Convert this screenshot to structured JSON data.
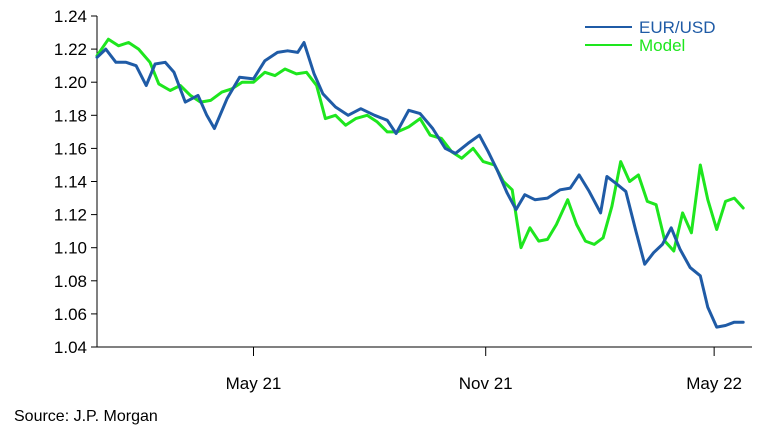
{
  "source": "Source: J.P. Morgan",
  "chart_data": {
    "type": "line",
    "title": "",
    "xlabel": "",
    "ylabel": "",
    "ylim": [
      1.04,
      1.24
    ],
    "yticks": [
      "1.04",
      "1.06",
      "1.08",
      "1.10",
      "1.12",
      "1.14",
      "1.16",
      "1.18",
      "1.20",
      "1.22",
      "1.24"
    ],
    "xlim": [
      "2020-12-28",
      "2022-05-31"
    ],
    "xticks": [
      {
        "date": "2021-05-01",
        "label": "May 21"
      },
      {
        "date": "2021-11-01",
        "label": "Nov 21"
      },
      {
        "date": "2022-05-01",
        "label": "May 22"
      }
    ],
    "grid": false,
    "legend_position": "top-right",
    "series": [
      {
        "name": "EUR/USD",
        "color": "#1f5ba6",
        "points": [
          [
            "2020-12-28",
            1.215
          ],
          [
            "2021-01-04",
            1.22
          ],
          [
            "2021-01-12",
            1.212
          ],
          [
            "2021-01-20",
            1.212
          ],
          [
            "2021-01-28",
            1.21
          ],
          [
            "2021-02-05",
            1.198
          ],
          [
            "2021-02-12",
            1.211
          ],
          [
            "2021-02-20",
            1.212
          ],
          [
            "2021-02-27",
            1.206
          ],
          [
            "2021-03-08",
            1.188
          ],
          [
            "2021-03-18",
            1.192
          ],
          [
            "2021-03-25",
            1.18
          ],
          [
            "2021-03-31",
            1.172
          ],
          [
            "2021-04-10",
            1.19
          ],
          [
            "2021-04-20",
            1.203
          ],
          [
            "2021-05-01",
            1.202
          ],
          [
            "2021-05-10",
            1.213
          ],
          [
            "2021-05-20",
            1.218
          ],
          [
            "2021-05-28",
            1.219
          ],
          [
            "2021-06-05",
            1.218
          ],
          [
            "2021-06-10",
            1.224
          ],
          [
            "2021-06-18",
            1.205
          ],
          [
            "2021-06-25",
            1.193
          ],
          [
            "2021-07-05",
            1.185
          ],
          [
            "2021-07-15",
            1.18
          ],
          [
            "2021-07-25",
            1.184
          ],
          [
            "2021-08-05",
            1.18
          ],
          [
            "2021-08-15",
            1.177
          ],
          [
            "2021-08-22",
            1.169
          ],
          [
            "2021-09-01",
            1.183
          ],
          [
            "2021-09-10",
            1.181
          ],
          [
            "2021-09-20",
            1.172
          ],
          [
            "2021-09-30",
            1.16
          ],
          [
            "2021-10-08",
            1.157
          ],
          [
            "2021-10-18",
            1.163
          ],
          [
            "2021-10-27",
            1.168
          ],
          [
            "2021-11-03",
            1.158
          ],
          [
            "2021-11-10",
            1.147
          ],
          [
            "2021-11-18",
            1.133
          ],
          [
            "2021-11-25",
            1.123
          ],
          [
            "2021-12-02",
            1.132
          ],
          [
            "2021-12-10",
            1.129
          ],
          [
            "2021-12-20",
            1.13
          ],
          [
            "2021-12-30",
            1.135
          ],
          [
            "2022-01-07",
            1.136
          ],
          [
            "2022-01-14",
            1.144
          ],
          [
            "2022-01-22",
            1.134
          ],
          [
            "2022-01-31",
            1.121
          ],
          [
            "2022-02-05",
            1.143
          ],
          [
            "2022-02-12",
            1.139
          ],
          [
            "2022-02-20",
            1.134
          ],
          [
            "2022-02-28",
            1.11
          ],
          [
            "2022-03-07",
            1.09
          ],
          [
            "2022-03-14",
            1.097
          ],
          [
            "2022-03-21",
            1.102
          ],
          [
            "2022-03-28",
            1.112
          ],
          [
            "2022-04-04",
            1.099
          ],
          [
            "2022-04-12",
            1.088
          ],
          [
            "2022-04-20",
            1.083
          ],
          [
            "2022-04-26",
            1.064
          ],
          [
            "2022-05-03",
            1.052
          ],
          [
            "2022-05-10",
            1.053
          ],
          [
            "2022-05-17",
            1.055
          ],
          [
            "2022-05-24",
            1.055
          ]
        ]
      },
      {
        "name": "Model",
        "color": "#1ee61e",
        "points": [
          [
            "2020-12-28",
            1.216
          ],
          [
            "2021-01-06",
            1.226
          ],
          [
            "2021-01-14",
            1.222
          ],
          [
            "2021-01-22",
            1.224
          ],
          [
            "2021-01-30",
            1.22
          ],
          [
            "2021-02-08",
            1.212
          ],
          [
            "2021-02-15",
            1.199
          ],
          [
            "2021-02-24",
            1.195
          ],
          [
            "2021-03-04",
            1.198
          ],
          [
            "2021-03-12",
            1.192
          ],
          [
            "2021-03-20",
            1.188
          ],
          [
            "2021-03-28",
            1.189
          ],
          [
            "2021-04-06",
            1.194
          ],
          [
            "2021-04-14",
            1.196
          ],
          [
            "2021-04-22",
            1.2
          ],
          [
            "2021-05-01",
            1.2
          ],
          [
            "2021-05-10",
            1.206
          ],
          [
            "2021-05-18",
            1.204
          ],
          [
            "2021-05-26",
            1.208
          ],
          [
            "2021-06-04",
            1.205
          ],
          [
            "2021-06-12",
            1.206
          ],
          [
            "2021-06-20",
            1.198
          ],
          [
            "2021-06-27",
            1.178
          ],
          [
            "2021-07-05",
            1.18
          ],
          [
            "2021-07-13",
            1.174
          ],
          [
            "2021-07-21",
            1.178
          ],
          [
            "2021-07-30",
            1.18
          ],
          [
            "2021-08-07",
            1.176
          ],
          [
            "2021-08-15",
            1.17
          ],
          [
            "2021-08-23",
            1.17
          ],
          [
            "2021-09-01",
            1.173
          ],
          [
            "2021-09-10",
            1.178
          ],
          [
            "2021-09-18",
            1.168
          ],
          [
            "2021-09-27",
            1.166
          ],
          [
            "2021-10-05",
            1.158
          ],
          [
            "2021-10-13",
            1.154
          ],
          [
            "2021-10-22",
            1.16
          ],
          [
            "2021-10-30",
            1.152
          ],
          [
            "2021-11-08",
            1.15
          ],
          [
            "2021-11-15",
            1.14
          ],
          [
            "2021-11-22",
            1.135
          ],
          [
            "2021-11-29",
            1.1
          ],
          [
            "2021-12-06",
            1.112
          ],
          [
            "2021-12-13",
            1.104
          ],
          [
            "2021-12-20",
            1.105
          ],
          [
            "2021-12-27",
            1.114
          ],
          [
            "2022-01-05",
            1.129
          ],
          [
            "2022-01-12",
            1.114
          ],
          [
            "2022-01-19",
            1.104
          ],
          [
            "2022-01-26",
            1.102
          ],
          [
            "2022-02-02",
            1.106
          ],
          [
            "2022-02-09",
            1.125
          ],
          [
            "2022-02-16",
            1.152
          ],
          [
            "2022-02-23",
            1.14
          ],
          [
            "2022-03-02",
            1.144
          ],
          [
            "2022-03-09",
            1.128
          ],
          [
            "2022-03-16",
            1.126
          ],
          [
            "2022-03-23",
            1.104
          ],
          [
            "2022-03-30",
            1.098
          ],
          [
            "2022-04-06",
            1.121
          ],
          [
            "2022-04-13",
            1.109
          ],
          [
            "2022-04-20",
            1.15
          ],
          [
            "2022-04-26",
            1.129
          ],
          [
            "2022-05-03",
            1.111
          ],
          [
            "2022-05-10",
            1.128
          ],
          [
            "2022-05-17",
            1.13
          ],
          [
            "2022-05-24",
            1.124
          ]
        ]
      }
    ]
  }
}
